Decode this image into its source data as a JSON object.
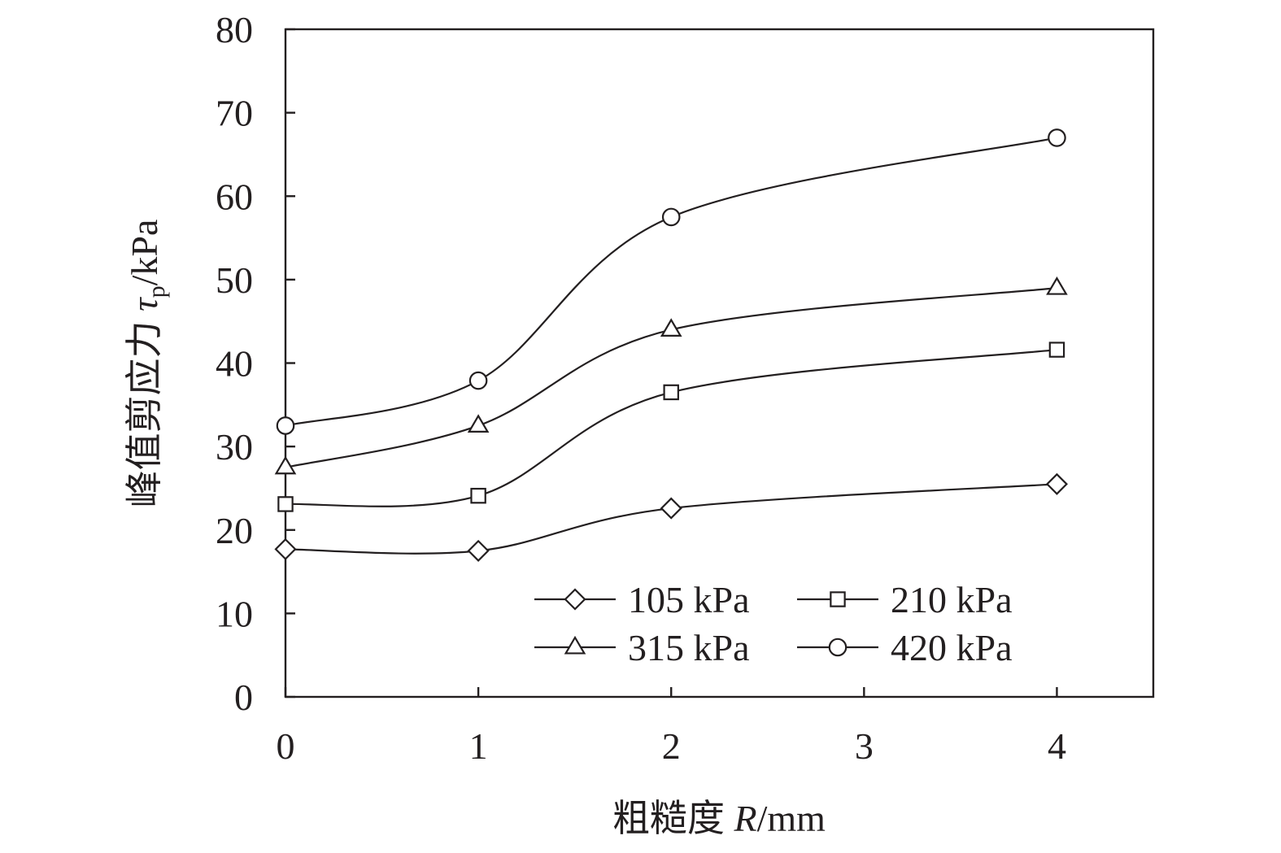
{
  "chart_data": {
    "type": "line",
    "xlabel_prefix": "粗糙度 ",
    "xlabel_var": "R",
    "xlabel_unit": "/mm",
    "ylabel_prefix": "峰值剪应力 ",
    "ylabel_var": "τ",
    "ylabel_sub": "p",
    "ylabel_unit": "/kPa",
    "xlim": [
      0,
      4.5
    ],
    "ylim": [
      0,
      80
    ],
    "x_ticks": [
      0,
      1,
      2,
      3,
      4
    ],
    "y_ticks": [
      0,
      10,
      20,
      30,
      40,
      50,
      60,
      70,
      80
    ],
    "grid": false,
    "legend_position": "lower-right",
    "x": [
      0,
      1,
      2,
      4
    ],
    "series": [
      {
        "name": "105 kPa",
        "marker": "diamond",
        "values": [
          17.7,
          17.5,
          22.6,
          25.5
        ]
      },
      {
        "name": "210 kPa",
        "marker": "square",
        "values": [
          23.1,
          24.1,
          36.5,
          41.6
        ]
      },
      {
        "name": "315 kPa",
        "marker": "triangle",
        "values": [
          27.5,
          32.5,
          44.0,
          49.0
        ]
      },
      {
        "name": "420 kPa",
        "marker": "circle",
        "values": [
          32.5,
          37.9,
          57.5,
          67.0
        ]
      }
    ],
    "colors": {
      "line": "#231f20",
      "marker_fill": "#ffffff"
    }
  }
}
